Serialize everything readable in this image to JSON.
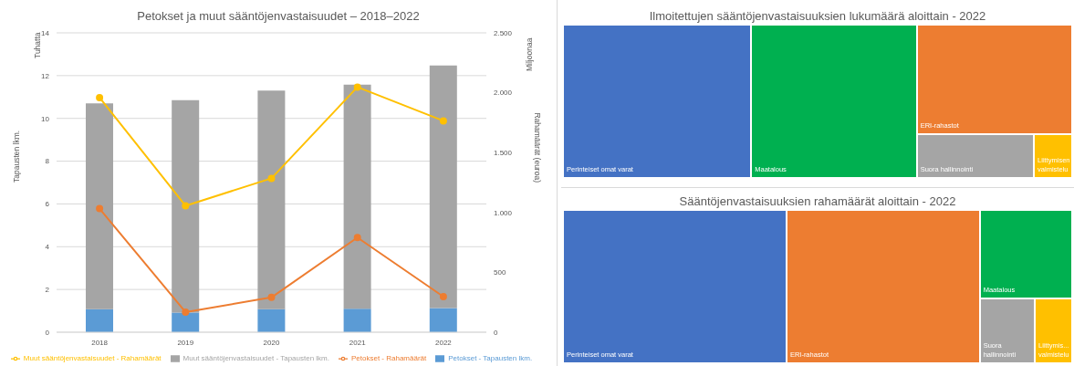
{
  "chart_data": [
    {
      "type": "bar",
      "stacked": true,
      "title": "Petokset ja muut sääntöjenvastaisuudet – 2018–2022",
      "ylabel": "Tapausten lkm.",
      "y2label": "Rahamäärät (euroa)",
      "annotations": [
        "Tuhatta",
        "Miljoonaa"
      ],
      "categories": [
        "2018",
        "2019",
        "2020",
        "2021",
        "2022"
      ],
      "series": [
        {
          "name": "Petokset - Tapausten lkm.",
          "color": "#5b9bd5",
          "values": [
            1.08,
            0.92,
            1.08,
            1.1,
            1.13
          ]
        },
        {
          "name": "Muut sääntöjenvastaisuudet - Tapausten lkm.",
          "color": "#a5a5a5",
          "values": [
            9.62,
            9.93,
            10.22,
            10.48,
            11.34
          ]
        },
        {
          "name": "Petokset - Rahamäärät",
          "type": "line",
          "axis": "y2",
          "color": "#ed7d31",
          "values": [
            1032,
            168,
            291,
            791,
            297
          ]
        },
        {
          "name": "Muut sääntöjenvastaisuudet - Rahamäärät",
          "type": "line",
          "axis": "y2",
          "color": "#ffc000",
          "values": [
            1959,
            1056,
            1285,
            2047,
            1765
          ]
        }
      ],
      "ylim": [
        0,
        14
      ],
      "yticks": [
        0,
        2,
        4,
        6,
        8,
        10,
        12,
        14
      ],
      "y2lim": [
        0,
        2500
      ],
      "y2ticks": [
        0,
        500,
        {
          "value": 1000,
          "label": "1.000"
        },
        {
          "value": 1500,
          "label": "1.500"
        },
        {
          "value": 2000,
          "label": "2.000"
        },
        {
          "value": 2500,
          "label": "2.500"
        }
      ],
      "grid": "y",
      "legend": "bottom",
      "marker": "circle",
      "line_style": "solid"
    },
    {
      "type": "other",
      "title": "Ilmoitettujen sääntöjenvastaisuuksien lukumäärä aloittain - 2022",
      "categories": [
        "Perinteiset omat varat",
        "Maatalous",
        "ERI-rahastot",
        "Suora hallinnointi",
        "Liittymisen valmistelu"
      ],
      "colors": [
        "#4472c4",
        "#00b050",
        "#ed7d31",
        "#a5a5a5",
        "#ffc000"
      ]
    },
    {
      "type": "other",
      "title": "Sääntöjenvastaisuuksien rahamäärät aloittain - 2022",
      "categories": [
        "Perinteiset omat varat",
        "ERI-rahastot",
        "Maatalous",
        "Suora hallinnointi",
        "Liittymis... valmistelu"
      ],
      "colors": [
        "#4472c4",
        "#ed7d31",
        "#00b050",
        "#a5a5a5",
        "#ffc000"
      ]
    }
  ]
}
